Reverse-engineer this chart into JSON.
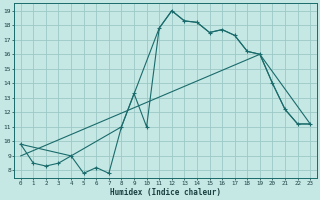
{
  "title": "",
  "xlabel": "Humidex (Indice chaleur)",
  "background_color": "#c5e8e5",
  "grid_color": "#9dc8c5",
  "line_color": "#1a6b6b",
  "xlim": [
    -0.5,
    23.5
  ],
  "ylim": [
    7.5,
    19.5
  ],
  "xticks": [
    0,
    1,
    2,
    3,
    4,
    5,
    6,
    7,
    8,
    9,
    10,
    11,
    12,
    13,
    14,
    15,
    16,
    17,
    18,
    19,
    20,
    21,
    22,
    23
  ],
  "yticks": [
    8,
    9,
    10,
    11,
    12,
    13,
    14,
    15,
    16,
    17,
    18,
    19
  ],
  "line1_x": [
    0,
    1,
    2,
    3,
    4,
    5,
    6,
    7,
    8,
    9,
    10,
    11,
    12,
    13,
    14,
    15,
    16,
    17,
    18,
    19,
    20,
    21,
    22,
    23
  ],
  "line1_y": [
    9.8,
    8.5,
    8.3,
    8.5,
    9.0,
    7.8,
    8.2,
    7.8,
    11.0,
    13.3,
    11.0,
    17.8,
    19.0,
    18.3,
    18.2,
    17.5,
    17.7,
    17.3,
    16.2,
    16.0,
    14.0,
    12.2,
    11.2,
    11.2
  ],
  "line2_x": [
    0,
    4,
    8,
    11,
    12,
    13,
    14,
    15,
    16,
    17,
    18,
    19,
    20,
    21,
    22,
    23
  ],
  "line2_y": [
    9.8,
    9.0,
    11.0,
    17.8,
    19.0,
    18.3,
    18.2,
    17.5,
    17.7,
    17.3,
    16.2,
    16.0,
    14.0,
    12.2,
    11.2,
    11.2
  ],
  "line3_x": [
    0,
    19,
    23
  ],
  "line3_y": [
    9.0,
    16.0,
    11.2
  ]
}
